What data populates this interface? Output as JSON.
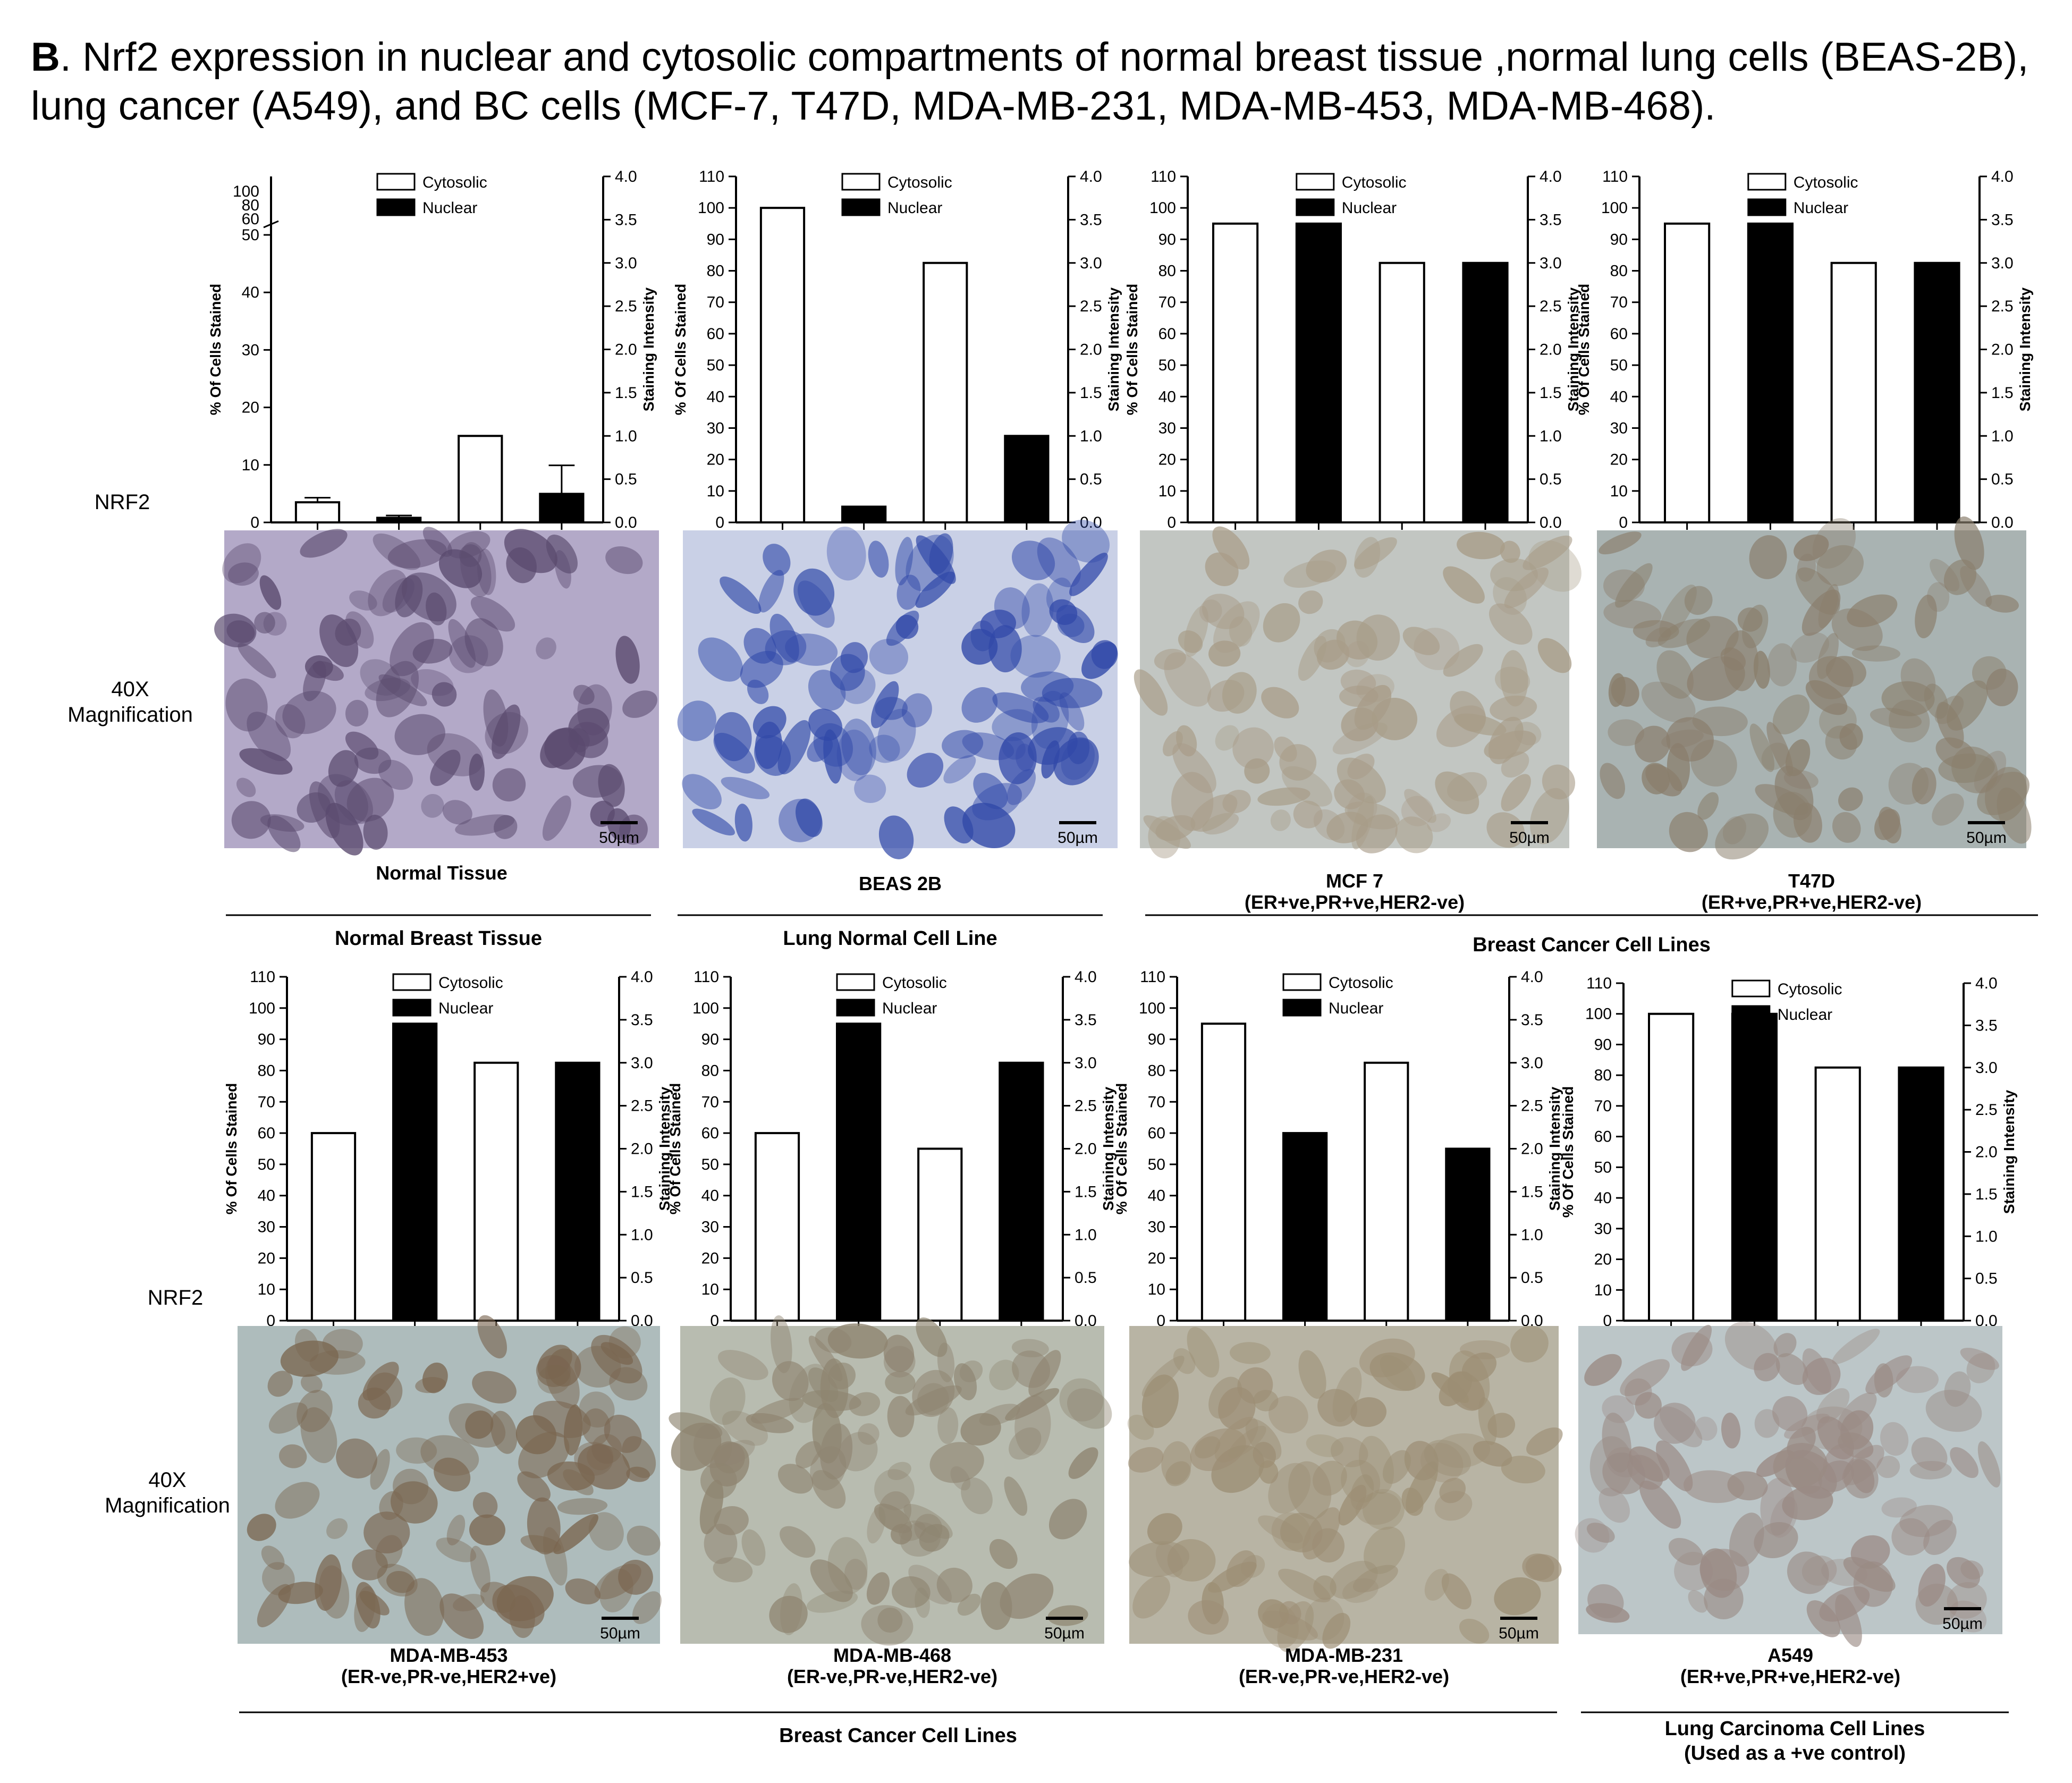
{
  "figure": {
    "panel_letter": "B",
    "caption_line1": ". Nrf2 expression in nuclear and cytosolic compartments of normal breast tissue ,normal lung cells (BEAS-2B),",
    "caption_line2": "lung cancer (A549), and BC cells (MCF-7, T47D, MDA-MB-231, MDA-MB-453, MDA-MB-468).",
    "row_labels": {
      "nrf2": "NRF2",
      "mag_line1": "40X",
      "mag_line2": "Magnification"
    },
    "legend": {
      "cytosolic": "Cytosolic",
      "nuclear": "Nuclear"
    },
    "axis_titles": {
      "left": "% Of Cells Stained",
      "right": "Staining Intensity"
    },
    "scale_bar": "50µm",
    "group_labels": [
      {
        "text": "Normal Breast Tissue"
      },
      {
        "text": "Lung Normal Cell Line"
      },
      {
        "text": "Breast Cancer  Cell Lines"
      },
      {
        "text": "Breast Cancer Cell Lines"
      },
      {
        "text": "Lung Carcinoma Cell Lines",
        "text2": "(Used as a +ve control)"
      }
    ],
    "colors": {
      "cytosolic_fill": "#ffffff",
      "nuclear_fill": "#000000",
      "bar_stroke": "#000000"
    }
  },
  "chart_data": [
    {
      "type": "bar",
      "sample": "Normal Tissue",
      "subtitle": "",
      "y_left_ticks": [
        "0",
        "10",
        "20",
        "30",
        "40",
        "50"
      ],
      "y_left_top_ticks": [
        "60",
        "80",
        "100"
      ],
      "y_right_ticks": [
        "0.0",
        "0.5",
        "1.0",
        "1.5",
        "2.0",
        "2.5",
        "3.0",
        "3.5",
        "4.0"
      ],
      "ylim": [
        0,
        50
      ],
      "broken_axis": true,
      "bars": [
        {
          "series": "Cytosolic",
          "axis": "left",
          "value": 3.5,
          "error": 0.8
        },
        {
          "series": "Nuclear",
          "axis": "left",
          "value": 0.8,
          "error": 0.4
        },
        {
          "series": "Cytosolic",
          "axis": "right",
          "value": 1.0,
          "error": 0
        },
        {
          "series": "Nuclear",
          "axis": "right",
          "value": 0.33,
          "error": 0.33
        }
      ]
    },
    {
      "type": "bar",
      "sample": "BEAS 2B",
      "subtitle": "",
      "y_left_ticks": [
        "0",
        "10",
        "20",
        "30",
        "40",
        "50",
        "60",
        "70",
        "80",
        "90",
        "100",
        "110"
      ],
      "y_right_ticks": [
        "0.0",
        "0.5",
        "1.0",
        "1.5",
        "2.0",
        "2.5",
        "3.0",
        "3.5",
        "4.0"
      ],
      "ylim": [
        0,
        110
      ],
      "bars": [
        {
          "series": "Cytosolic",
          "axis": "left",
          "value": 100
        },
        {
          "series": "Nuclear",
          "axis": "left",
          "value": 5
        },
        {
          "series": "Cytosolic",
          "axis": "right",
          "value": 3.0
        },
        {
          "series": "Nuclear",
          "axis": "right",
          "value": 1.0
        }
      ]
    },
    {
      "type": "bar",
      "sample": "MCF 7",
      "subtitle": "(ER+ve,PR+ve,HER2-ve)",
      "y_left_ticks": [
        "0",
        "10",
        "20",
        "30",
        "40",
        "50",
        "60",
        "70",
        "80",
        "90",
        "100",
        "110"
      ],
      "y_right_ticks": [
        "0.0",
        "0.5",
        "1.0",
        "1.5",
        "2.0",
        "2.5",
        "3.0",
        "3.5",
        "4.0"
      ],
      "ylim": [
        0,
        110
      ],
      "bars": [
        {
          "series": "Cytosolic",
          "axis": "left",
          "value": 95
        },
        {
          "series": "Nuclear",
          "axis": "left",
          "value": 95
        },
        {
          "series": "Cytosolic",
          "axis": "right",
          "value": 3.0
        },
        {
          "series": "Nuclear",
          "axis": "right",
          "value": 3.0
        }
      ]
    },
    {
      "type": "bar",
      "sample": "T47D",
      "subtitle": "(ER+ve,PR+ve,HER2-ve)",
      "y_left_ticks": [
        "0",
        "10",
        "20",
        "30",
        "40",
        "50",
        "60",
        "70",
        "80",
        "90",
        "100",
        "110"
      ],
      "y_right_ticks": [
        "0.0",
        "0.5",
        "1.0",
        "1.5",
        "2.0",
        "2.5",
        "3.0",
        "3.5",
        "4.0"
      ],
      "ylim": [
        0,
        110
      ],
      "bars": [
        {
          "series": "Cytosolic",
          "axis": "left",
          "value": 95
        },
        {
          "series": "Nuclear",
          "axis": "left",
          "value": 95
        },
        {
          "series": "Cytosolic",
          "axis": "right",
          "value": 3.0
        },
        {
          "series": "Nuclear",
          "axis": "right",
          "value": 3.0
        }
      ]
    },
    {
      "type": "bar",
      "sample": "MDA-MB-453",
      "subtitle": "(ER-ve,PR-ve,HER2+ve)",
      "y_left_ticks": [
        "0",
        "10",
        "20",
        "30",
        "40",
        "50",
        "60",
        "70",
        "80",
        "90",
        "100",
        "110"
      ],
      "y_right_ticks": [
        "0.0",
        "0.5",
        "1.0",
        "1.5",
        "2.0",
        "2.5",
        "3.0",
        "3.5",
        "4.0"
      ],
      "ylim": [
        0,
        110
      ],
      "bars": [
        {
          "series": "Cytosolic",
          "axis": "left",
          "value": 60
        },
        {
          "series": "Nuclear",
          "axis": "left",
          "value": 95
        },
        {
          "series": "Cytosolic",
          "axis": "right",
          "value": 3.0
        },
        {
          "series": "Nuclear",
          "axis": "right",
          "value": 3.0
        }
      ]
    },
    {
      "type": "bar",
      "sample": "MDA-MB-468",
      "subtitle": "(ER-ve,PR-ve,HER2-ve)",
      "y_left_ticks": [
        "0",
        "10",
        "20",
        "30",
        "40",
        "50",
        "60",
        "70",
        "80",
        "90",
        "100",
        "110"
      ],
      "y_right_ticks": [
        "0.0",
        "0.5",
        "1.0",
        "1.5",
        "2.0",
        "2.5",
        "3.0",
        "3.5",
        "4.0"
      ],
      "ylim": [
        0,
        110
      ],
      "bars": [
        {
          "series": "Cytosolic",
          "axis": "left",
          "value": 60
        },
        {
          "series": "Nuclear",
          "axis": "left",
          "value": 95
        },
        {
          "series": "Cytosolic",
          "axis": "right",
          "value": 2.0
        },
        {
          "series": "Nuclear",
          "axis": "right",
          "value": 3.0
        }
      ]
    },
    {
      "type": "bar",
      "sample": "MDA-MB-231",
      "subtitle": "(ER-ve,PR-ve,HER2-ve)",
      "y_left_ticks": [
        "0",
        "10",
        "20",
        "30",
        "40",
        "50",
        "60",
        "70",
        "80",
        "90",
        "100",
        "110"
      ],
      "y_right_ticks": [
        "0.0",
        "0.5",
        "1.0",
        "1.5",
        "2.0",
        "2.5",
        "3.0",
        "3.5",
        "4.0"
      ],
      "ylim": [
        0,
        110
      ],
      "bars": [
        {
          "series": "Cytosolic",
          "axis": "left",
          "value": 95
        },
        {
          "series": "Nuclear",
          "axis": "left",
          "value": 60
        },
        {
          "series": "Cytosolic",
          "axis": "right",
          "value": 3.0
        },
        {
          "series": "Nuclear",
          "axis": "right",
          "value": 2.0
        }
      ]
    },
    {
      "type": "bar",
      "sample": "A549",
      "subtitle": "(ER+ve,PR+ve,HER2-ve)",
      "y_left_ticks": [
        "0",
        "10",
        "20",
        "30",
        "40",
        "50",
        "60",
        "70",
        "80",
        "90",
        "100",
        "110"
      ],
      "y_right_ticks": [
        "0.0",
        "0.5",
        "1.0",
        "1.5",
        "2.0",
        "2.5",
        "3.0",
        "3.5",
        "4.0"
      ],
      "ylim": [
        0,
        110
      ],
      "bars": [
        {
          "series": "Cytosolic",
          "axis": "left",
          "value": 100
        },
        {
          "series": "Nuclear",
          "axis": "left",
          "value": 100
        },
        {
          "series": "Cytosolic",
          "axis": "right",
          "value": 3.0
        },
        {
          "series": "Nuclear",
          "axis": "right",
          "value": 3.0
        }
      ]
    }
  ],
  "micrographs": [
    {
      "stain": "Normal Tissue",
      "bg": "#b3a9c8",
      "cell": "#5a4a6e"
    },
    {
      "stain": "BEAS 2B",
      "bg": "#c9d0e6",
      "cell": "#3048a8"
    },
    {
      "stain": "MCF 7",
      "bg": "#c2c6c2",
      "cell": "#a89c88"
    },
    {
      "stain": "T47D",
      "bg": "#a9b3b2",
      "cell": "#8a7e6c"
    },
    {
      "stain": "MDA-MB-453",
      "bg": "#aebcbc",
      "cell": "#7a6650"
    },
    {
      "stain": "MDA-MB-468",
      "bg": "#b8bcb0",
      "cell": "#8e8470"
    },
    {
      "stain": "MDA-MB-231",
      "bg": "#b8b4a4",
      "cell": "#9c8e74"
    },
    {
      "stain": "A549",
      "bg": "#bcc6c8",
      "cell": "#9a8a84"
    }
  ]
}
